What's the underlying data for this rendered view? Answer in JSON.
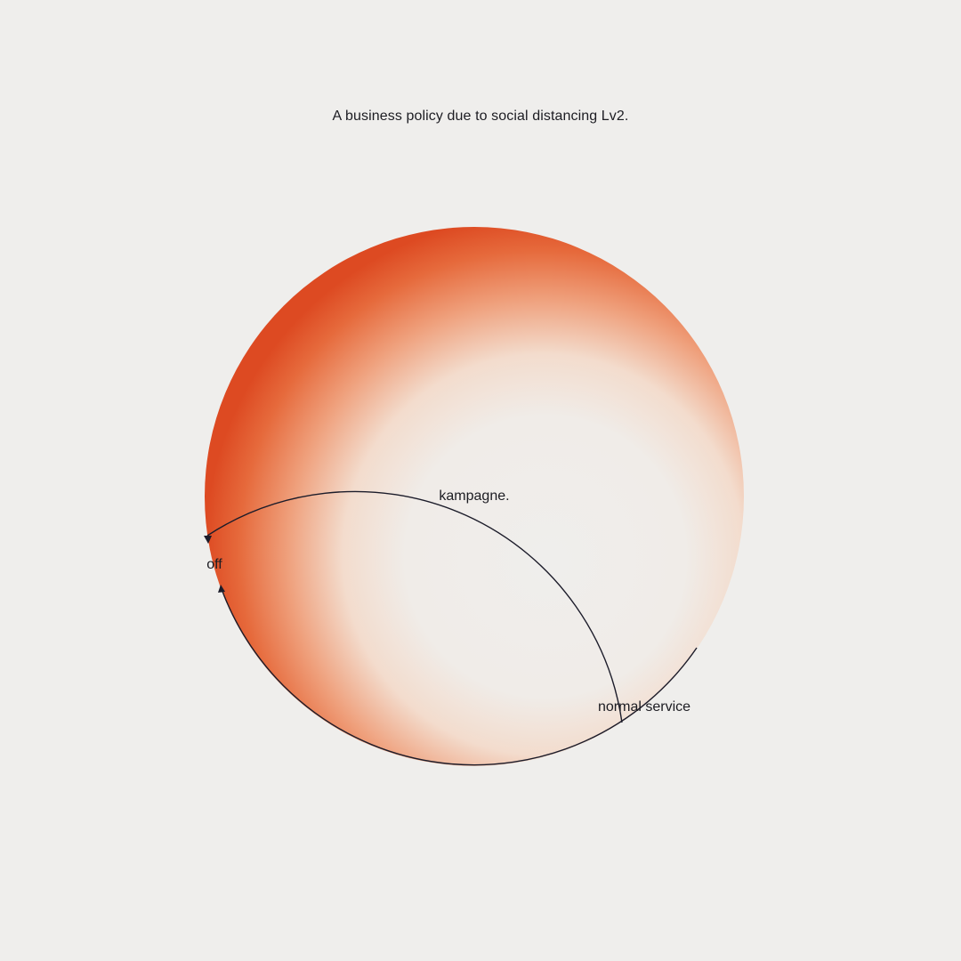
{
  "caption": "A business policy due to social distancing Lv2.",
  "diagram": {
    "center_label": "kampagne.",
    "off_label": "off",
    "normal_label": "normal service"
  },
  "colors": {
    "background": "#efeeec",
    "accent": "#e2552a",
    "line": "#1c1c2a"
  }
}
